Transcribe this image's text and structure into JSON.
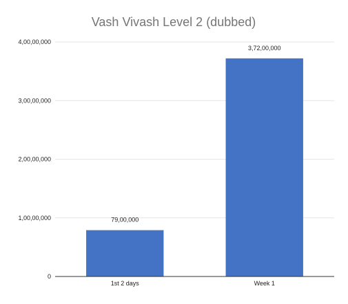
{
  "chart_data": {
    "type": "bar",
    "title": "Vash Vivash Level 2 (dubbed)",
    "categories": [
      "1st 2 days",
      "Week 1"
    ],
    "values": [
      7900000,
      37200000
    ],
    "value_labels": [
      "79,00,000",
      "3,72,00,000"
    ],
    "ylim": [
      0,
      40000000
    ],
    "yticks": [
      0,
      10000000,
      20000000,
      30000000,
      40000000
    ],
    "ytick_labels": [
      "0",
      "1,00,00,000",
      "2,00,00,000",
      "3,00,00,000",
      "4,00,00,000"
    ],
    "xlabel": "",
    "ylabel": "",
    "grid": true,
    "legend": "none",
    "bar_color": "#4472c4"
  }
}
